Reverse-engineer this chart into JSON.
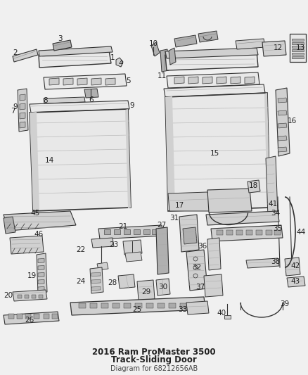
{
  "bg_color": "#f0f0f0",
  "fig_width": 4.38,
  "fig_height": 5.33,
  "dpi": 100,
  "line_color": "#555555",
  "dark_line": "#333333",
  "fill_light": "#e8e8e8",
  "fill_mid": "#d0d0d0",
  "fill_dark": "#b0b0b0",
  "label_fontsize": 7.5,
  "label_color": "#222222",
  "title": "2016 Ram ProMaster 3500",
  "subtitle": "Track-Sliding Door",
  "part_number": "Diagram for 68212656AB",
  "title_fontsize": 8.5
}
